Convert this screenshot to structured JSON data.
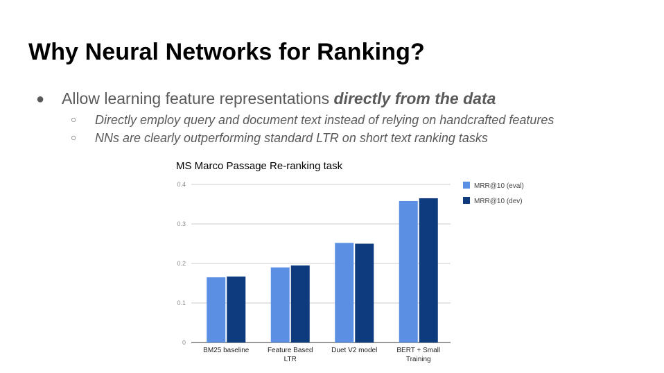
{
  "slide": {
    "title": "Why Neural Networks for Ranking?",
    "bullet": {
      "marker": "●",
      "text_plain": "Allow learning feature representations ",
      "text_emphasis": "directly from the data"
    },
    "subbullets": [
      {
        "marker": "○",
        "text": "Directly employ query and document text instead of relying on handcrafted features"
      },
      {
        "marker": "○",
        "text": "NNs are clearly outperforming standard LTR on short text ranking tasks"
      }
    ]
  },
  "chart_data": {
    "type": "bar",
    "title": "MS Marco Passage Re-ranking task",
    "categories": [
      "BM25 baseline",
      "Feature Based LTR",
      "Duet V2 model",
      "BERT + Small Training"
    ],
    "category_lines": [
      [
        "BM25 baseline"
      ],
      [
        "Feature Based",
        "LTR"
      ],
      [
        "Duet V2 model"
      ],
      [
        "BERT + Small",
        "Training"
      ]
    ],
    "series": [
      {
        "name": "MRR@10 (eval)",
        "color": "#5b8fe4",
        "values": [
          0.165,
          0.19,
          0.252,
          0.358
        ]
      },
      {
        "name": "MRR@10 (dev)",
        "color": "#0e3a7e",
        "values": [
          0.167,
          0.195,
          0.25,
          0.365
        ]
      }
    ],
    "yticks": [
      0,
      0.1,
      0.2,
      0.3,
      0.4
    ],
    "ytick_labels": [
      "0",
      "0.1",
      "0.2",
      "0.3",
      "0.4"
    ],
    "ylim": [
      0,
      0.4
    ],
    "xlabel": "",
    "ylabel": "",
    "grid": true,
    "legend_position": "top-right"
  }
}
